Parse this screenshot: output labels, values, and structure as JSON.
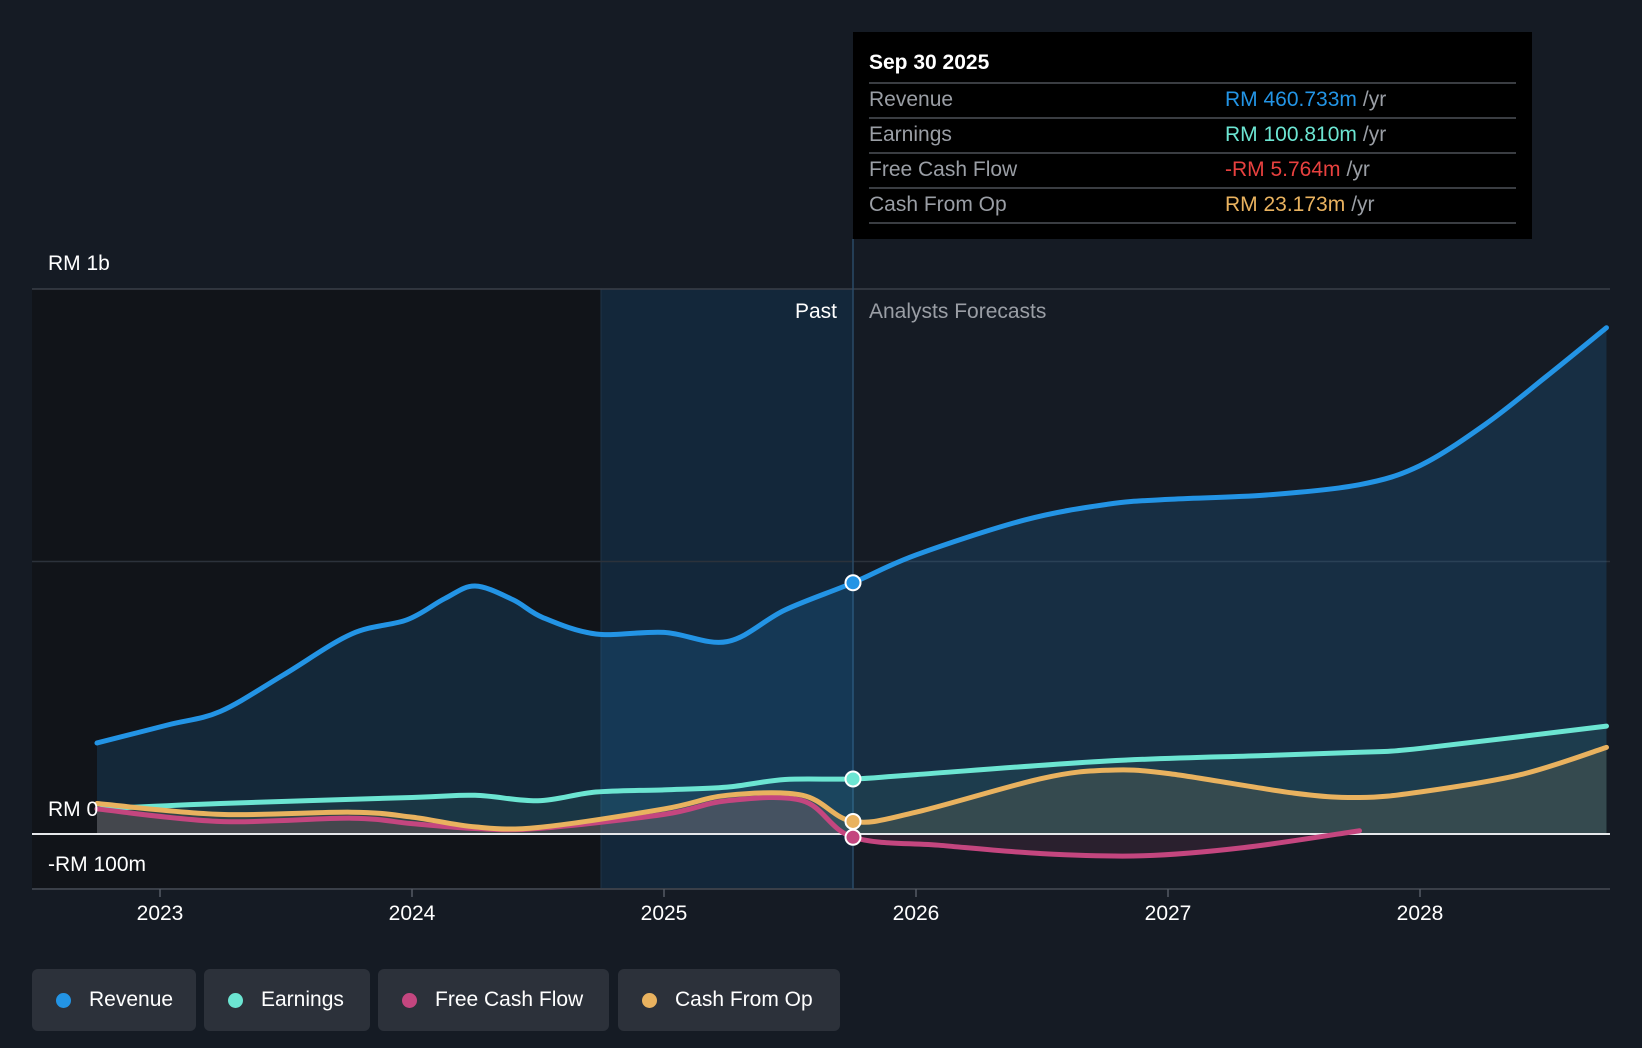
{
  "tooltip": {
    "date": "Sep 30 2025",
    "unit": "/yr",
    "rows": [
      {
        "label": "Revenue",
        "value": "RM 460.733m",
        "color": "#2394e5"
      },
      {
        "label": "Earnings",
        "value": "RM 100.810m",
        "color": "#6ce5d2"
      },
      {
        "label": "Free Cash Flow",
        "value": "-RM 5.764m",
        "color": "#e8413f"
      },
      {
        "label": "Cash From Op",
        "value": "RM 23.173m",
        "color": "#e9b25f"
      }
    ]
  },
  "chart_data": {
    "type": "line",
    "title": "",
    "xlabel": "",
    "ylabel": "",
    "ylim": [
      -100,
      1000
    ],
    "y_tick_labels": {
      "top": "RM 1b",
      "zero": "RM 0",
      "bottom": "-RM 100m"
    },
    "x_tick_labels": [
      "2023",
      "2024",
      "2025",
      "2026",
      "2027",
      "2028"
    ],
    "past_label": "Past",
    "forecast_label": "Analysts Forecasts",
    "divider_x": 2025.75,
    "series": [
      {
        "name": "Revenue",
        "color": "#2394e5",
        "x": [
          2022.75,
          2023.03,
          2023.24,
          2023.49,
          2023.76,
          2023.98,
          2024.13,
          2024.25,
          2024.4,
          2024.52,
          2024.73,
          2025,
          2025.25,
          2025.48,
          2025.75,
          2026,
          2026.43,
          2026.76,
          2027,
          2027.39,
          2027.76,
          2028,
          2028.26,
          2028.5,
          2028.74
        ],
        "values": [
          167,
          200,
          225,
          292,
          367,
          393,
          432,
          455,
          430,
          397,
          367,
          370,
          353,
          411,
          461,
          512,
          576,
          605,
          614,
          622,
          641,
          676,
          752,
          839,
          929
        ]
      },
      {
        "name": "Earnings",
        "color": "#6ce5d2",
        "x": [
          2022.75,
          2023.24,
          2024,
          2024.25,
          2024.5,
          2024.73,
          2025,
          2025.25,
          2025.48,
          2025.75,
          2026,
          2026.76,
          2027.39,
          2027.76,
          2028,
          2028.74
        ],
        "values": [
          46,
          56,
          67,
          71,
          61,
          77,
          81,
          86,
          100,
          101,
          109,
          134,
          144,
          150,
          157,
          198
        ]
      },
      {
        "name": "Free Cash Flow",
        "color": "#c4467f",
        "x": [
          2022.75,
          2023.24,
          2023.76,
          2024,
          2024.25,
          2024.5,
          2025,
          2025.25,
          2025.55,
          2025.75,
          2026.1,
          2026.5,
          2026.9,
          2027.3,
          2027.76
        ],
        "values": [
          46,
          23,
          29,
          19,
          10,
          10,
          36,
          61,
          61,
          -6,
          -21,
          -36,
          -40,
          -25,
          6
        ]
      },
      {
        "name": "Cash From Op",
        "color": "#e9b25f",
        "x": [
          2022.75,
          2023.24,
          2023.76,
          2024,
          2024.25,
          2024.5,
          2025,
          2025.25,
          2025.55,
          2025.75,
          2026,
          2026.5,
          2026.76,
          2027,
          2027.5,
          2027.76,
          2028,
          2028.4,
          2028.74
        ],
        "values": [
          56,
          36,
          40,
          31,
          13,
          12,
          46,
          71,
          71,
          23,
          40,
          102,
          117,
          111,
          75,
          67,
          77,
          109,
          159
        ]
      }
    ]
  },
  "legend": [
    {
      "label": "Revenue",
      "color": "#2394e5"
    },
    {
      "label": "Earnings",
      "color": "#6ce5d2"
    },
    {
      "label": "Free Cash Flow",
      "color": "#c4467f"
    },
    {
      "label": "Cash From Op",
      "color": "#e9b25f"
    }
  ]
}
